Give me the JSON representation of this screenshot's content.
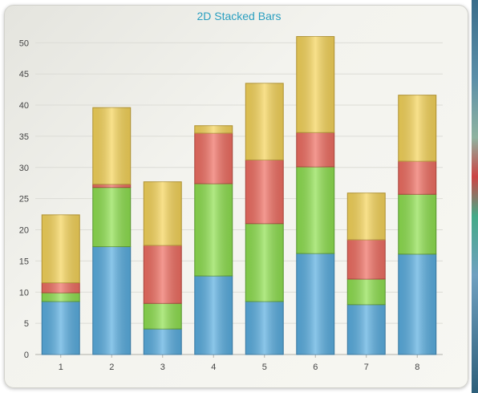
{
  "chart_data": {
    "type": "bar",
    "stacked": true,
    "title": "2D Stacked Bars",
    "xlabel": "",
    "ylabel": "",
    "categories": [
      "1",
      "2",
      "3",
      "4",
      "5",
      "6",
      "7",
      "8"
    ],
    "ylim": [
      0,
      53
    ],
    "yticks": [
      0,
      5,
      10,
      15,
      20,
      25,
      30,
      35,
      40,
      45,
      50
    ],
    "grid": true,
    "legend": "none",
    "series": [
      {
        "color": "#5aaee0",
        "stroke": "#3f7fa8",
        "values": [
          8.5,
          17.3,
          4.1,
          12.6,
          8.5,
          16.2,
          8.0,
          16.1
        ]
      },
      {
        "color": "#8fe050",
        "stroke": "#5e9e35",
        "values": [
          1.4,
          9.5,
          4.1,
          14.8,
          12.5,
          13.9,
          4.1,
          9.6
        ]
      },
      {
        "color": "#ef6e62",
        "stroke": "#b04a40",
        "values": [
          1.6,
          0.5,
          9.3,
          8.1,
          10.2,
          5.5,
          6.3,
          5.3
        ]
      },
      {
        "color": "#f5d45a",
        "stroke": "#b89a38",
        "values": [
          10.9,
          12.3,
          10.2,
          1.2,
          12.3,
          15.4,
          7.5,
          10.6
        ]
      }
    ]
  }
}
